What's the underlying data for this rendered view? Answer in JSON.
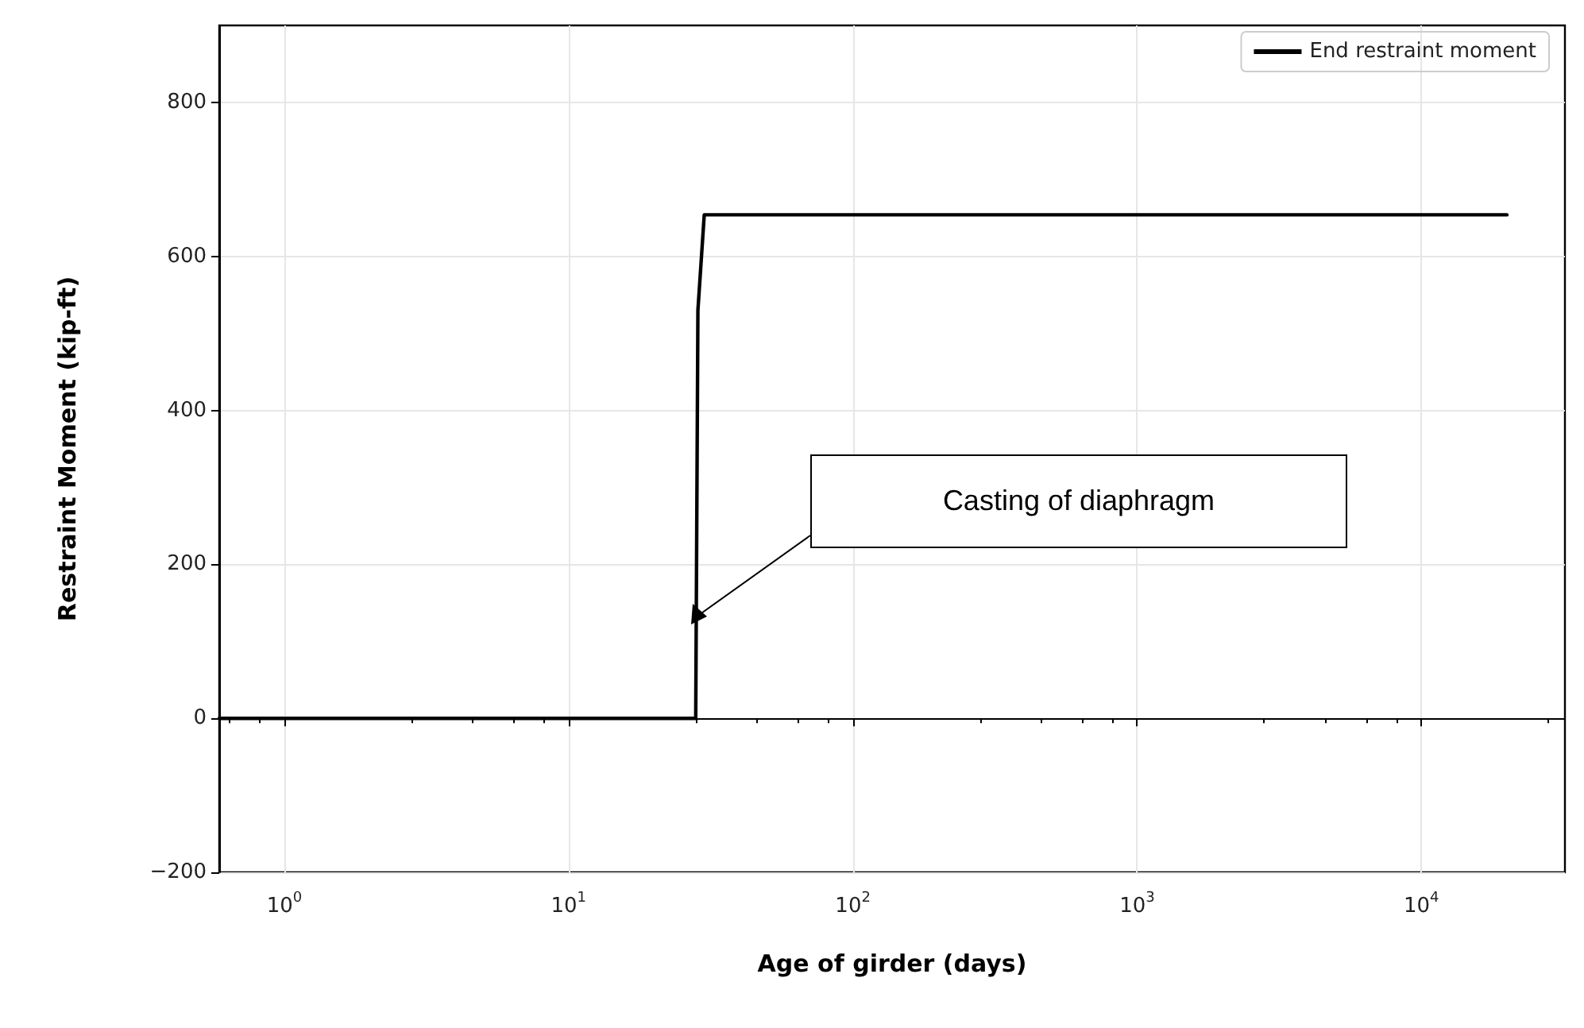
{
  "chart_data": {
    "type": "line",
    "xlabel": "Age of girder (days)",
    "ylabel": "Restraint Moment (kip-ft)",
    "x": [
      0.59,
      28,
      28.5,
      30,
      20000
    ],
    "series": [
      {
        "name": "End restraint moment",
        "color": "#000000",
        "values": [
          0,
          0,
          530,
          654,
          654
        ]
      }
    ],
    "xlim": [
      0.59,
      32000
    ],
    "xticks": [
      {
        "value": 1,
        "label": "10$^{0}$"
      },
      {
        "value": 10,
        "label": "10$^{1}$"
      },
      {
        "value": 100,
        "label": "10$^{2}$"
      },
      {
        "value": 1000,
        "label": "10$^{3}$"
      },
      {
        "value": 10000,
        "label": "10$^{4}$"
      }
    ],
    "ylim": [
      -200,
      900
    ],
    "yticks": [
      -200,
      0,
      200,
      400,
      600,
      800
    ],
    "log": "x",
    "grid": true,
    "legend": "top right",
    "marker": "none",
    "line_style": "solid",
    "annotations": [
      "Casting of diaphragm"
    ]
  }
}
